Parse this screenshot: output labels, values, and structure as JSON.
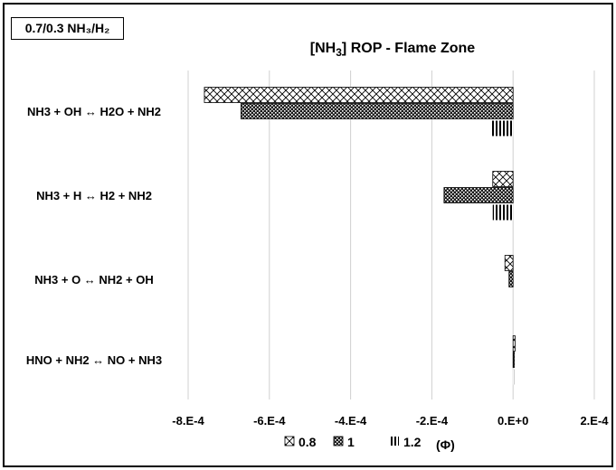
{
  "tag": {
    "label": "0.7/0.3 NH₃/H₂"
  },
  "chart_data": {
    "type": "bar",
    "orientation": "horizontal",
    "title": "[NH₃] ROP - Flame Zone",
    "categories": [
      "NH3 + OH ↔ H2O + NH2",
      "NH3 + H ↔ H2 + NH2",
      "NH3 + O ↔ NH2 + OH",
      "HNO + NH2 ↔ NO + NH3"
    ],
    "series": [
      {
        "name": "0.8",
        "pattern": "diagonal-crosshatch",
        "values": [
          -0.00076,
          -5e-05,
          -2e-05,
          5e-06
        ]
      },
      {
        "name": "1",
        "pattern": "dense-dots",
        "values": [
          -0.00067,
          -0.00017,
          -1e-05,
          3e-06
        ]
      },
      {
        "name": "1.2",
        "pattern": "vertical-lines",
        "values": [
          -5.5e-05,
          -5e-05,
          0,
          2e-06
        ]
      }
    ],
    "x_ticks": [
      "-8.E-4",
      "-6.E-4",
      "-4.E-4",
      "-2.E-4",
      "0.E+0",
      "2.E-4"
    ],
    "xlim": [
      -0.0008,
      0.0002
    ],
    "grid": true,
    "legend_position": "bottom",
    "legend_suffix": "(Φ)"
  }
}
